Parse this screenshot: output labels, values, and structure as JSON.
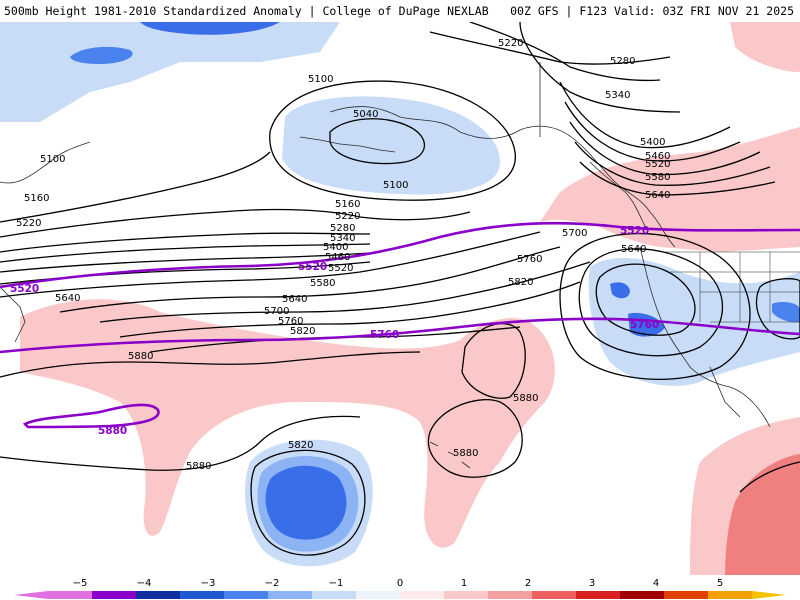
{
  "header": {
    "left": "500mb Height 1981-2010 Standardized Anomaly | College of DuPage NEXLAB",
    "right": "00Z GFS | F123 Valid: 03Z FRI NOV 21 2025"
  },
  "contour_labels": [
    {
      "text": "5220"
    },
    {
      "text": "5280"
    },
    {
      "text": "5340"
    },
    {
      "text": "5400"
    },
    {
      "text": "5460"
    },
    {
      "text": "5520"
    },
    {
      "text": "5580"
    },
    {
      "text": "5640"
    },
    {
      "text": "5100"
    },
    {
      "text": "5040"
    },
    {
      "text": "5100"
    },
    {
      "text": "5160"
    },
    {
      "text": "5220"
    },
    {
      "text": "5280"
    },
    {
      "text": "5340"
    },
    {
      "text": "5400"
    },
    {
      "text": "5460"
    },
    {
      "text": "5520"
    },
    {
      "text": "5580"
    },
    {
      "text": "5640"
    },
    {
      "text": "5700"
    },
    {
      "text": "5760"
    },
    {
      "text": "5820"
    },
    {
      "text": "5100"
    },
    {
      "text": "5160"
    },
    {
      "text": "5220"
    },
    {
      "text": "5640"
    },
    {
      "text": "5880"
    },
    {
      "text": "5760"
    },
    {
      "text": "5820"
    },
    {
      "text": "5700"
    },
    {
      "text": "5640"
    },
    {
      "text": "5880"
    },
    {
      "text": "5880"
    },
    {
      "text": "5820"
    },
    {
      "text": "5880"
    }
  ],
  "purple_labels": [
    {
      "text": "5520"
    },
    {
      "text": "5520"
    },
    {
      "text": "5520"
    },
    {
      "text": "5760"
    },
    {
      "text": "5760"
    },
    {
      "text": "5880"
    }
  ],
  "colorbar": {
    "ticks": [
      "−5",
      "−4",
      "−3",
      "−2",
      "−1",
      "0",
      "1",
      "2",
      "3",
      "4",
      "5"
    ],
    "colors": [
      "#e070e0",
      "#8a00c8",
      "#1030a0",
      "#1e5ad0",
      "#4a82ee",
      "#8cb4f4",
      "#c8dcf8",
      "#eef4fc",
      "#fdeaea",
      "#fac8c8",
      "#f4a0a0",
      "#ee6060",
      "#d82020",
      "#a00000",
      "#e04000",
      "#f4a000"
    ],
    "left_arrow_color": "#e070e0",
    "right_arrow_color": "#f4c000"
  },
  "colors": {
    "contour": "#000000",
    "purple": "#8a00c8",
    "coast": "#2a2a2a",
    "neg1": "#c8dcf8",
    "neg2": "#8cb4f4",
    "neg3": "#3a6ee8",
    "pos1": "#fac8c8",
    "pos2": "#f08080"
  }
}
